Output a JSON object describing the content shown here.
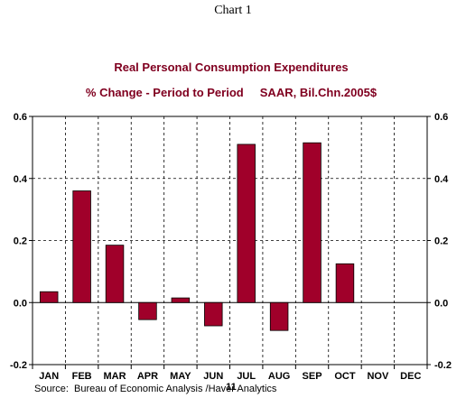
{
  "caption": "Chart 1",
  "chart_data": {
    "type": "bar",
    "title": "Real Personal Consumption Expenditures",
    "subtitle": "% Change - Period to Period     SAAR, Bil.Chn.2005$",
    "categories": [
      "JAN",
      "FEB",
      "MAR",
      "APR",
      "MAY",
      "JUN",
      "JUL",
      "AUG",
      "SEP",
      "OCT",
      "NOV",
      "DEC"
    ],
    "values": [
      0.035,
      0.36,
      0.185,
      -0.055,
      0.015,
      -0.075,
      0.51,
      -0.09,
      0.515,
      0.125,
      null,
      null
    ],
    "year_label": "11",
    "ylim": [
      -0.2,
      0.6
    ],
    "yticks": [
      "-0.2",
      "0.0",
      "0.2",
      "0.4",
      "0.6"
    ],
    "ytick_values": [
      -0.2,
      0.0,
      0.2,
      0.4,
      0.6
    ],
    "grid": true,
    "bar_color": "#a0002a",
    "source": "Source:  Bureau of Economic Analysis /Haver Analytics"
  }
}
